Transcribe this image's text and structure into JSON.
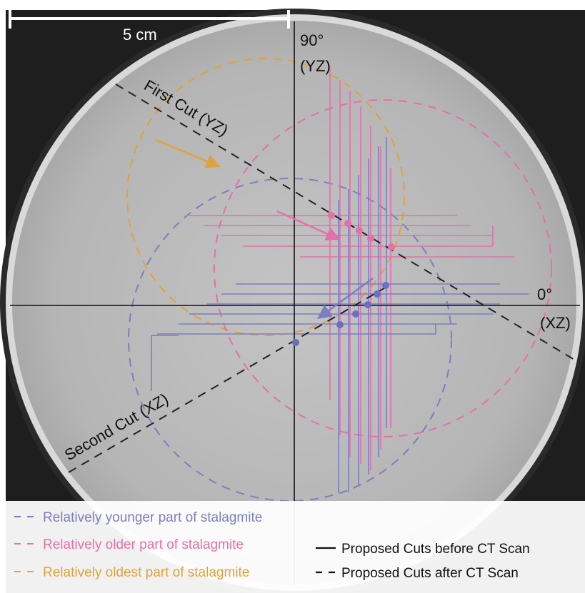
{
  "scale_bar": {
    "label": "5 cm"
  },
  "axes": {
    "vertical_label_angle": "90°",
    "vertical_label_plane": "(YZ)",
    "horizontal_label_angle": "0°",
    "horizontal_label_plane": "(XZ)"
  },
  "cuts": {
    "first": "First Cut (YZ)",
    "second": "Second Cut (XZ)"
  },
  "legend": {
    "younger": "Relatively younger part of stalagmite",
    "older": "Relatively older part of stalagmite",
    "oldest": "Relatively oldest part of stalagmite",
    "solid": "Proposed Cuts before CT Scan",
    "dashed": "Proposed Cuts after CT Scan"
  },
  "colors": {
    "younger": "#7b7fc0",
    "older": "#e56fa8",
    "oldest": "#e0a23a",
    "axis": "#111111",
    "disk": "#b9b9b9",
    "ring": "#cfcfcf"
  }
}
